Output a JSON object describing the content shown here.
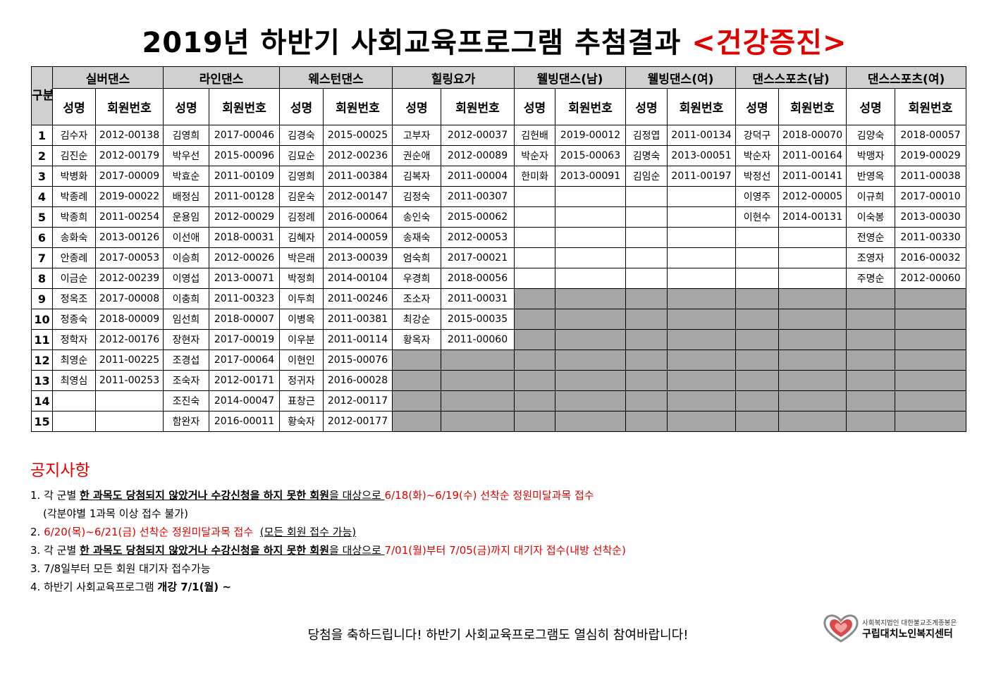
{
  "title": {
    "main": "2019년 하반기 사회교육프로그램 추첨결과",
    "highlight": "<건강증진>"
  },
  "table": {
    "gubun": "구분",
    "programs": [
      "실버댄스",
      "라인댄스",
      "웨스턴댄스",
      "힐링요가",
      "웰빙댄스(남)",
      "웰빙댄스(여)",
      "댄스스포츠(남)",
      "댄스스포츠(여)"
    ],
    "sub_headers": {
      "name": "성명",
      "member_no": "회원번호"
    },
    "rows": [
      {
        "no": "1",
        "cells": [
          [
            "김수자",
            "2012-00138"
          ],
          [
            "김영희",
            "2017-00046"
          ],
          [
            "김경숙",
            "2015-00025"
          ],
          [
            "고부자",
            "2012-00037"
          ],
          [
            "김헌배",
            "2019-00012"
          ],
          [
            "김정엽",
            "2011-00134"
          ],
          [
            "강덕구",
            "2018-00070"
          ],
          [
            "김양숙",
            "2018-00057"
          ]
        ]
      },
      {
        "no": "2",
        "cells": [
          [
            "김진순",
            "2012-00179"
          ],
          [
            "박우선",
            "2015-00096"
          ],
          [
            "김묘순",
            "2012-00236"
          ],
          [
            "권순애",
            "2012-00089"
          ],
          [
            "박순자",
            "2015-00063"
          ],
          [
            "김명숙",
            "2013-00051"
          ],
          [
            "박순자",
            "2011-00164"
          ],
          [
            "박맹자",
            "2019-00029"
          ]
        ]
      },
      {
        "no": "3",
        "cells": [
          [
            "박병화",
            "2017-00009"
          ],
          [
            "박효순",
            "2011-00109"
          ],
          [
            "김영희",
            "2011-00384"
          ],
          [
            "김복자",
            "2011-00004"
          ],
          [
            "한미화",
            "2013-00091"
          ],
          [
            "김임순",
            "2011-00197"
          ],
          [
            "박정선",
            "2011-00141"
          ],
          [
            "반영옥",
            "2011-00038"
          ]
        ]
      },
      {
        "no": "4",
        "cells": [
          [
            "박종례",
            "2019-00022"
          ],
          [
            "배정심",
            "2011-00128"
          ],
          [
            "김운숙",
            "2012-00147"
          ],
          [
            "김정숙",
            "2011-00307"
          ],
          [
            "",
            ""
          ],
          [
            "",
            ""
          ],
          [
            "이영주",
            "2012-00005"
          ],
          [
            "이규희",
            "2017-00010"
          ]
        ]
      },
      {
        "no": "5",
        "cells": [
          [
            "박종희",
            "2011-00254"
          ],
          [
            "운용임",
            "2012-00029"
          ],
          [
            "김정례",
            "2016-00064"
          ],
          [
            "송인숙",
            "2015-00062"
          ],
          [
            "",
            ""
          ],
          [
            "",
            ""
          ],
          [
            "이현수",
            "2014-00131"
          ],
          [
            "이숙봉",
            "2013-00030"
          ]
        ]
      },
      {
        "no": "6",
        "cells": [
          [
            "송화숙",
            "2013-00126"
          ],
          [
            "이선애",
            "2018-00031"
          ],
          [
            "김혜자",
            "2014-00059"
          ],
          [
            "송재숙",
            "2012-00053"
          ],
          [
            "",
            ""
          ],
          [
            "",
            ""
          ],
          [
            "",
            ""
          ],
          [
            "전영순",
            "2011-00330"
          ]
        ]
      },
      {
        "no": "7",
        "cells": [
          [
            "안종례",
            "2017-00053"
          ],
          [
            "이승희",
            "2012-00026"
          ],
          [
            "박은래",
            "2013-00039"
          ],
          [
            "엄숙희",
            "2017-00021"
          ],
          [
            "",
            ""
          ],
          [
            "",
            ""
          ],
          [
            "",
            ""
          ],
          [
            "조영자",
            "2016-00032"
          ]
        ]
      },
      {
        "no": "8",
        "cells": [
          [
            "이금순",
            "2012-00239"
          ],
          [
            "이영섭",
            "2013-00071"
          ],
          [
            "박정희",
            "2014-00104"
          ],
          [
            "우경희",
            "2018-00056"
          ],
          [
            "",
            ""
          ],
          [
            "",
            ""
          ],
          [
            "",
            ""
          ],
          [
            "주명순",
            "2012-00060"
          ]
        ]
      },
      {
        "no": "9",
        "cells": [
          [
            "정옥조",
            "2017-00008"
          ],
          [
            "이충희",
            "2011-00323"
          ],
          [
            "이두희",
            "2011-00246"
          ],
          [
            "조소자",
            "2011-00031"
          ],
          [
            "",
            ""
          ],
          [
            "",
            ""
          ],
          [
            "",
            ""
          ],
          [
            "",
            ""
          ]
        ]
      },
      {
        "no": "10",
        "cells": [
          [
            "정종숙",
            "2018-00009"
          ],
          [
            "임선희",
            "2018-00007"
          ],
          [
            "이병옥",
            "2011-00381"
          ],
          [
            "최강순",
            "2015-00035"
          ],
          [
            "",
            ""
          ],
          [
            "",
            ""
          ],
          [
            "",
            ""
          ],
          [
            "",
            ""
          ]
        ]
      },
      {
        "no": "11",
        "cells": [
          [
            "정학자",
            "2012-00176"
          ],
          [
            "장현자",
            "2017-00019"
          ],
          [
            "이우분",
            "2011-00114"
          ],
          [
            "황옥자",
            "2011-00060"
          ],
          [
            "",
            ""
          ],
          [
            "",
            ""
          ],
          [
            "",
            ""
          ],
          [
            "",
            ""
          ]
        ]
      },
      {
        "no": "12",
        "cells": [
          [
            "최영순",
            "2011-00225"
          ],
          [
            "조경섭",
            "2017-00064"
          ],
          [
            "이현인",
            "2015-00076"
          ],
          [
            "",
            ""
          ],
          [
            "",
            ""
          ],
          [
            "",
            ""
          ],
          [
            "",
            ""
          ],
          [
            "",
            ""
          ]
        ]
      },
      {
        "no": "13",
        "cells": [
          [
            "최영심",
            "2011-00253"
          ],
          [
            "조숙자",
            "2012-00171"
          ],
          [
            "정귀자",
            "2016-00028"
          ],
          [
            "",
            ""
          ],
          [
            "",
            ""
          ],
          [
            "",
            ""
          ],
          [
            "",
            ""
          ],
          [
            "",
            ""
          ]
        ]
      },
      {
        "no": "14",
        "cells": [
          [
            "",
            ""
          ],
          [
            "조진숙",
            "2014-00047"
          ],
          [
            "표창근",
            "2012-00117"
          ],
          [
            "",
            ""
          ],
          [
            "",
            ""
          ],
          [
            "",
            ""
          ],
          [
            "",
            ""
          ],
          [
            "",
            ""
          ]
        ]
      },
      {
        "no": "15",
        "cells": [
          [
            "",
            ""
          ],
          [
            "함완자",
            "2016-00011"
          ],
          [
            "황숙자",
            "2012-00177"
          ],
          [
            "",
            ""
          ],
          [
            "",
            ""
          ],
          [
            "",
            ""
          ],
          [
            "",
            ""
          ],
          [
            "",
            ""
          ]
        ]
      }
    ],
    "gray_from_row": [
      99,
      99,
      99,
      12,
      9,
      9,
      9,
      9
    ]
  },
  "notice": {
    "heading": "공지사항",
    "item1": {
      "prefix": "1. 각 군별 ",
      "underlined": "한 과목도 당첨되지 않았거나 수강신청을 하지 못한 회원",
      "middle": "을 대상으로 ",
      "red": "6/18(화)~6/19(수) 선착순 정원미달과목 접수",
      "sub": "(각분야별 1과목 이상 접수 불가)"
    },
    "item2": {
      "prefix": "2. ",
      "red": "6/20(목)~6/21(금) 선착순 정원미달과목 접수",
      "underlined": "(모든 회원 접수 가능)"
    },
    "item3": {
      "prefix": "3. 각 군별 ",
      "underlined": "한 과목도 당첨되지 않았거나 수강신청을 하지 못한 회원",
      "middle": "을 대상으로 ",
      "red": "7/01(월)부터 7/05(금)까지 대기자 접수(내방 선착순)"
    },
    "item4": {
      "text": "3. 7/8일부터 모든 회원 대기자 접수가능"
    },
    "item5": {
      "prefix": "4. 하반기 사회교육프로그램 ",
      "bold": "개강 7/1(월) ~"
    }
  },
  "footer": {
    "text": "당첨을 축하드립니다! 하반기 사회교육프로그램도 열심히 참여바랍니다!"
  },
  "logo": {
    "subtitle": "사회복지법인 대한불교조계종봉은",
    "name": "구립대치노인복지센터",
    "colors": {
      "heart_red": "#d84a4a",
      "heart_pink": "#f2a0a0",
      "heart_gray": "#8a8a8a"
    }
  },
  "colors": {
    "accent_red": "#e00000",
    "header_gray": "#d0d0d0",
    "cell_gray": "#a6a6a6"
  }
}
